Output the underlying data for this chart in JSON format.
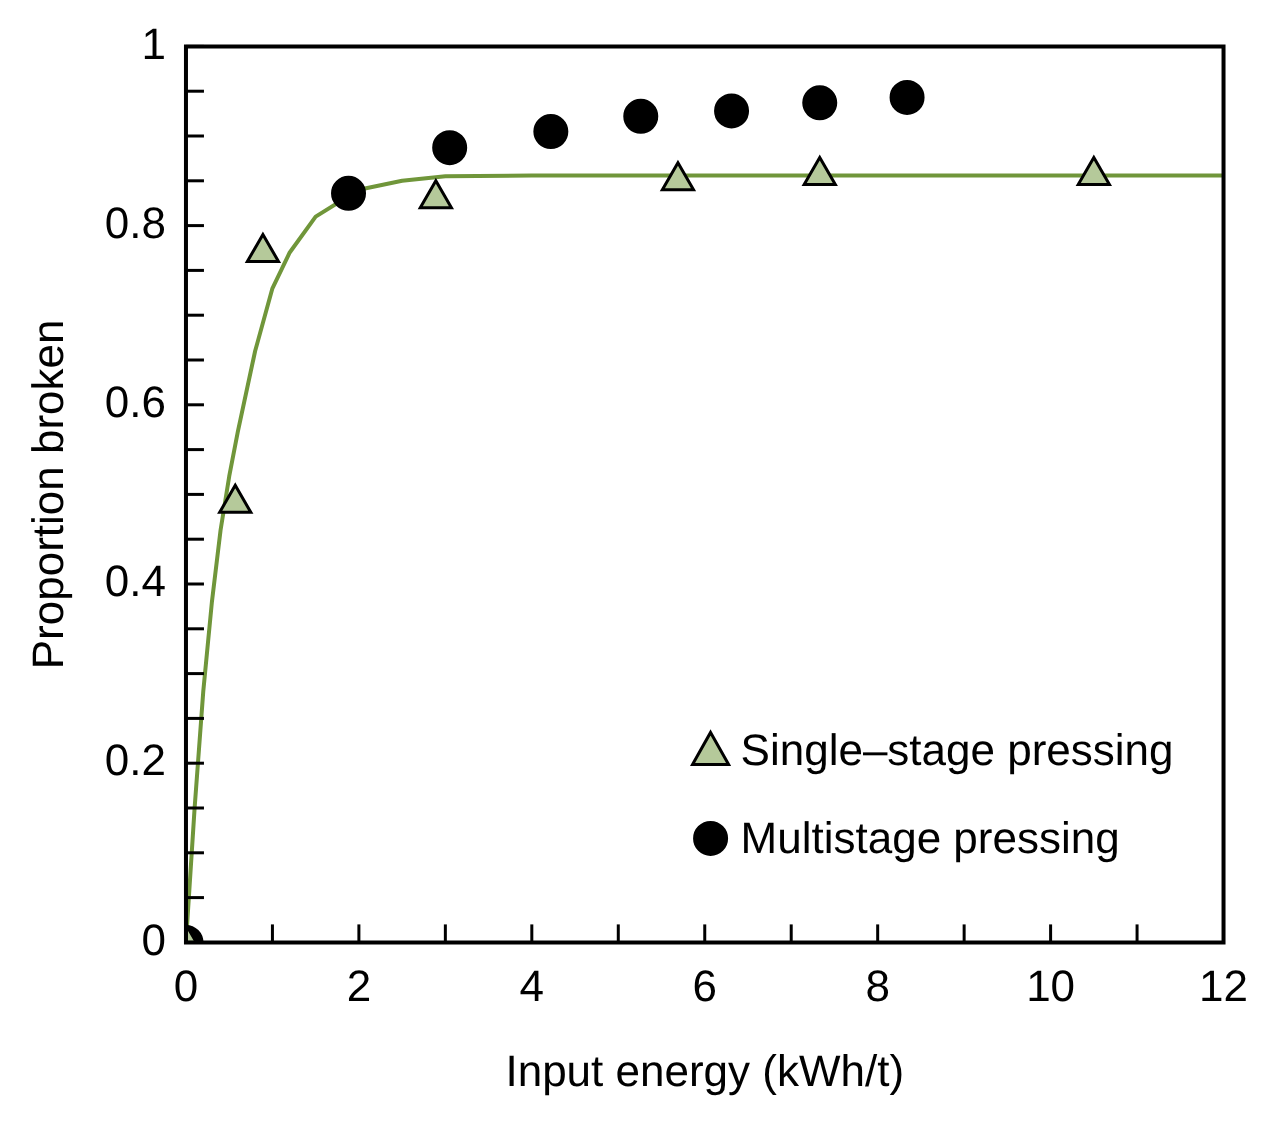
{
  "chart_data": {
    "type": "scatter",
    "xlabel": "Input energy (kWh/t)",
    "ylabel": "Proportion broken",
    "xlim": [
      0,
      12
    ],
    "ylim": [
      0,
      1
    ],
    "xticks": [
      0,
      {
        "value": 1,
        "label": null
      },
      2,
      {
        "value": 3,
        "label": null
      },
      4,
      {
        "value": 5,
        "label": null
      },
      6,
      {
        "value": 7,
        "label": null
      },
      8,
      {
        "value": 9,
        "label": null
      },
      10,
      {
        "value": 11,
        "label": null
      },
      12
    ],
    "yticks": [
      0,
      {
        "value": 0.05,
        "label": null
      },
      {
        "value": 0.1,
        "label": null
      },
      {
        "value": 0.15,
        "label": null
      },
      0.2,
      {
        "value": 0.25,
        "label": null
      },
      {
        "value": 0.3,
        "label": null
      },
      {
        "value": 0.35,
        "label": null
      },
      0.4,
      {
        "value": 0.45,
        "label": null
      },
      {
        "value": 0.5,
        "label": null
      },
      {
        "value": 0.55,
        "label": null
      },
      0.6,
      {
        "value": 0.65,
        "label": null
      },
      {
        "value": 0.7,
        "label": null
      },
      {
        "value": 0.75,
        "label": null
      },
      0.8,
      {
        "value": 0.85,
        "label": null
      },
      {
        "value": 0.9,
        "label": null
      },
      {
        "value": 0.95,
        "label": null
      },
      1
    ],
    "grid": false,
    "legend": "bottom right",
    "series": [
      {
        "type": "line",
        "color": "#70963a",
        "marker": "none",
        "x": [
          0,
          0.1,
          0.2,
          0.3,
          0.4,
          0.5,
          0.6,
          0.8,
          1.0,
          1.2,
          1.5,
          2,
          2.5,
          3,
          4,
          12
        ],
        "values": [
          0,
          0.15,
          0.28,
          0.38,
          0.46,
          0.52,
          0.57,
          0.66,
          0.73,
          0.77,
          0.81,
          0.84,
          0.85,
          0.855,
          0.856,
          0.856
        ]
      },
      {
        "name": "Single–stage pressing",
        "color": "#b5c99a",
        "marker": "triangle",
        "x": [
          0,
          0.57,
          0.89,
          2.89,
          5.69,
          7.33,
          10.5
        ],
        "values": [
          0,
          0.49,
          0.77,
          0.83,
          0.85,
          0.856,
          0.856
        ]
      },
      {
        "name": "Multistage pressing",
        "color": "#000000",
        "marker": "circle",
        "x": [
          0,
          1.88,
          3.05,
          4.22,
          5.26,
          6.31,
          7.33,
          8.34
        ],
        "values": [
          0,
          0.836,
          0.887,
          0.905,
          0.922,
          0.928,
          0.937,
          0.943
        ]
      }
    ]
  }
}
